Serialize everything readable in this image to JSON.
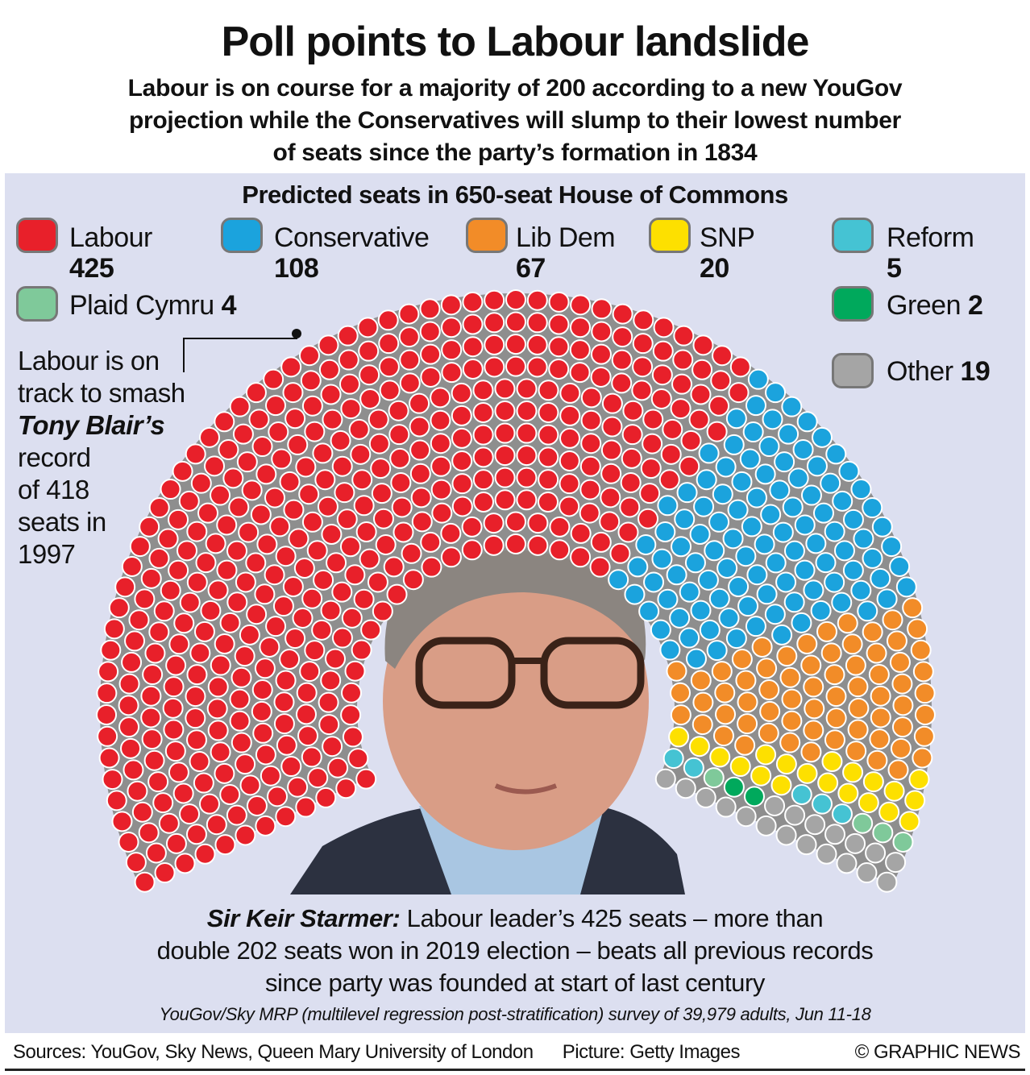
{
  "header": {
    "title": "Poll points to Labour landslide",
    "subtitle_lines": [
      "Labour is on course for a majority of 200 according to a new YouGov",
      "projection while the Conservatives will slump to their lowest number",
      "of seats since the party’s formation in 1834"
    ]
  },
  "chart_data": {
    "type": "parliament",
    "title": "Predicted seats in 650-seat House of Commons",
    "total": 650,
    "series": [
      {
        "name": "Labour",
        "value": 425,
        "color": "#e8202a"
      },
      {
        "name": "Conservative",
        "value": 108,
        "color": "#1ba3dd"
      },
      {
        "name": "Lib Dem",
        "value": 67,
        "color": "#f28c28"
      },
      {
        "name": "SNP",
        "value": 20,
        "color": "#fde000"
      },
      {
        "name": "Reform",
        "value": 5,
        "color": "#45c3d3"
      },
      {
        "name": "Plaid Cymru",
        "value": 4,
        "color": "#7fc99a"
      },
      {
        "name": "Green",
        "value": 2,
        "color": "#00a95c"
      },
      {
        "name": "Other",
        "value": 19,
        "color": "#a5a5a5"
      }
    ]
  },
  "annotation": {
    "lines": [
      "Labour is on",
      "track to smash"
    ],
    "emph": "Tony Blair’s",
    "rest": [
      "record",
      "of 418",
      "seats in",
      "1997"
    ]
  },
  "caption": {
    "lead": "Sir Keir Starmer:",
    "line1": " Labour leader’s 425 seats – more than",
    "line2": "double 202 seats won in 2019 election – beats all previous records",
    "line3": "since party was founded at start of last century"
  },
  "survey": "YouGov/Sky MRP (multilevel regression post-stratification) survey of 39,979 adults, Jun 11-18",
  "footer": {
    "sources": "Sources: YouGov, Sky News, Queen Mary University of London",
    "picture": "Picture: Getty Images",
    "credit": "© GRAPHIC NEWS"
  }
}
